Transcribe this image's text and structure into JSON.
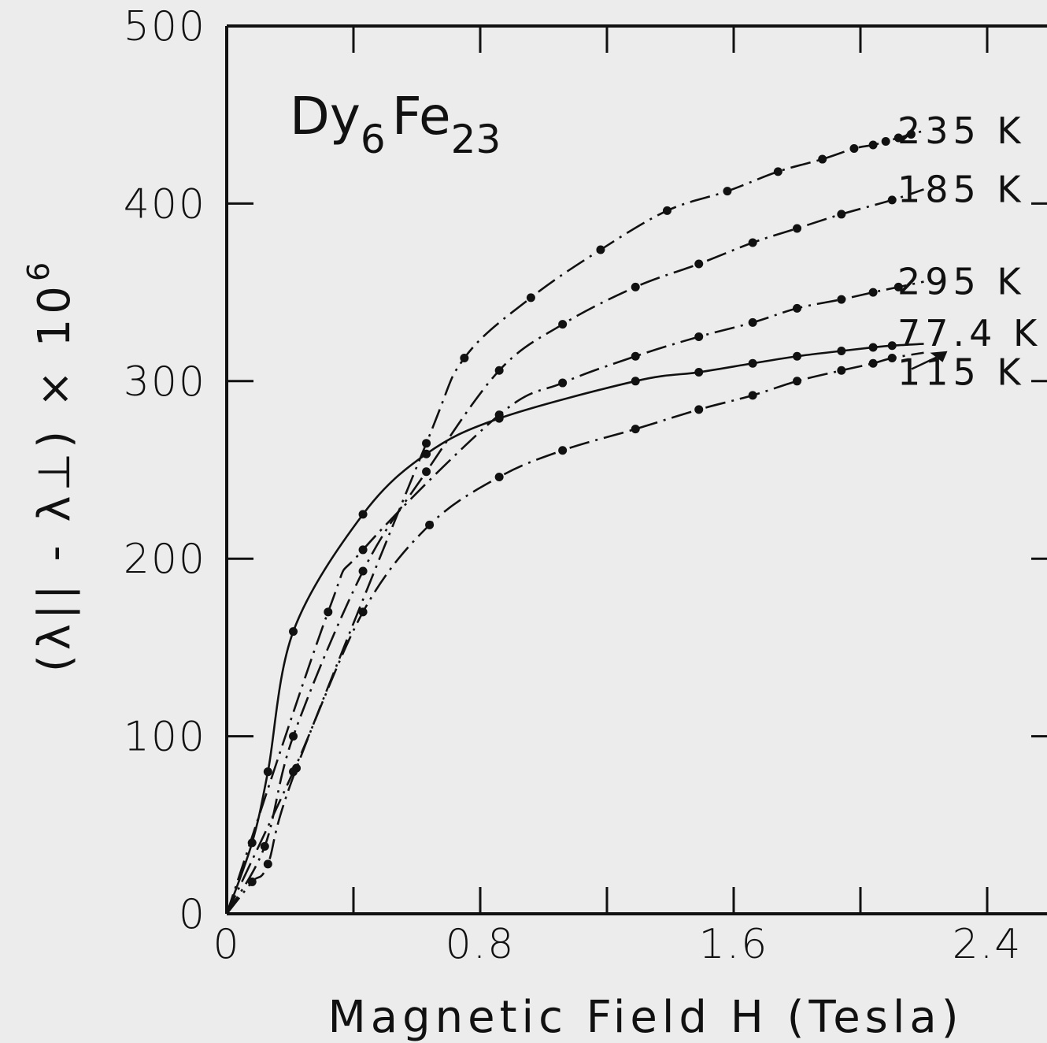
{
  "chart_data": {
    "type": "line",
    "title": "Dy₆Fe₂₃",
    "title_parts": {
      "base1": "Dy",
      "sub1": "6",
      "base2": "Fe",
      "sub2": "23"
    },
    "xlabel": "Magnetic Field  H (Tesla)",
    "ylabel": "(λ|| - λ⊥) × 10⁶",
    "ylabel_parts": {
      "main": "(λ|| - λ⊥)  ×  10",
      "exponent": "6"
    },
    "xlim": [
      0,
      2.8
    ],
    "ylim": [
      0,
      500
    ],
    "xticks": [
      0,
      0.8,
      1.6,
      2.4
    ],
    "xtick_labels": [
      "0",
      "0.8",
      "1.6",
      "2.4"
    ],
    "xminor_ticks": [
      0.4,
      1.2,
      2.0
    ],
    "yticks": [
      0,
      100,
      200,
      300,
      400,
      500
    ],
    "ytick_labels": [
      "0",
      "100",
      "200",
      "300",
      "400",
      "500"
    ],
    "grid": false,
    "legend": "inline labels at right end of curves",
    "series": [
      {
        "name": "235 K",
        "curve": "dash-dot",
        "points": [
          [
            0.08,
            18
          ],
          [
            0.13,
            28
          ],
          [
            0.22,
            82
          ],
          [
            0.63,
            265
          ],
          [
            0.75,
            313
          ],
          [
            0.96,
            347
          ],
          [
            1.18,
            374
          ],
          [
            1.39,
            396
          ],
          [
            1.58,
            407
          ],
          [
            1.74,
            418
          ],
          [
            1.88,
            425
          ],
          [
            1.98,
            431
          ],
          [
            2.04,
            433
          ],
          [
            2.08,
            435
          ],
          [
            2.12,
            437
          ],
          [
            2.16,
            439
          ]
        ],
        "curve_end": [
          2.2,
          441
        ]
      },
      {
        "name": "185 K",
        "curve": "dash-dot",
        "points": [
          [
            0.12,
            38
          ],
          [
            0.21,
            100
          ],
          [
            0.43,
            193
          ],
          [
            0.63,
            249
          ],
          [
            0.86,
            306
          ],
          [
            1.06,
            332
          ],
          [
            1.29,
            353
          ],
          [
            1.49,
            366
          ],
          [
            1.66,
            378
          ],
          [
            1.8,
            386
          ],
          [
            1.94,
            394
          ],
          [
            2.1,
            402
          ]
        ],
        "curve_end": [
          2.2,
          408
        ]
      },
      {
        "name": "295 K",
        "curve": "dash-dot",
        "points": [
          [
            0.32,
            170
          ],
          [
            0.43,
            205
          ],
          [
            0.86,
            281
          ],
          [
            1.06,
            299
          ],
          [
            1.29,
            314
          ],
          [
            1.49,
            325
          ],
          [
            1.66,
            333
          ],
          [
            1.8,
            341
          ],
          [
            1.94,
            346
          ],
          [
            2.04,
            350
          ],
          [
            2.12,
            353
          ]
        ],
        "curve_end": [
          2.2,
          356
        ]
      },
      {
        "name": "77.4 K",
        "curve": "solid",
        "points": [
          [
            0.08,
            40
          ],
          [
            0.13,
            80
          ],
          [
            0.21,
            159
          ],
          [
            0.43,
            225
          ],
          [
            0.63,
            259
          ],
          [
            0.86,
            279
          ],
          [
            1.29,
            300
          ],
          [
            1.49,
            305
          ],
          [
            1.66,
            310
          ],
          [
            1.8,
            314
          ],
          [
            1.94,
            317
          ],
          [
            2.04,
            319
          ],
          [
            2.1,
            320
          ]
        ],
        "curve_end": [
          2.2,
          321
        ]
      },
      {
        "name": "115 K",
        "curve": "dash-dot",
        "points": [
          [
            0.21,
            80
          ],
          [
            0.43,
            170
          ],
          [
            0.64,
            219
          ],
          [
            0.86,
            246
          ],
          [
            1.06,
            261
          ],
          [
            1.29,
            273
          ],
          [
            1.49,
            284
          ],
          [
            1.66,
            292
          ],
          [
            1.8,
            300
          ],
          [
            1.94,
            306
          ],
          [
            2.04,
            310
          ],
          [
            2.1,
            313
          ]
        ],
        "curve_end": [
          2.2,
          316
        ]
      }
    ],
    "series_label_positions": {
      "235 K": {
        "y": 441
      },
      "185 K": {
        "y": 408
      },
      "295 K": {
        "y": 356
      },
      "77.4 K": {
        "y": 327
      },
      "115 K": {
        "y": 305
      }
    }
  }
}
